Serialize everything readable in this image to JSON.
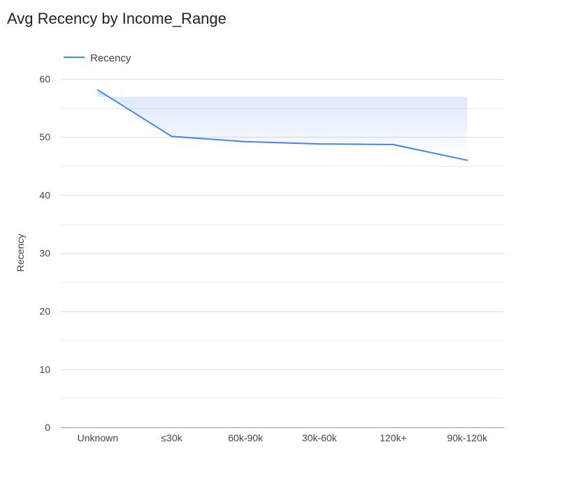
{
  "chart_data": {
    "type": "area",
    "title": "Avg Recency by Income_Range",
    "xlabel": "",
    "ylabel": "Recency",
    "categories": [
      "Unknown",
      "≤30k",
      "60k-90k",
      "30k-60k",
      "120k+",
      "90k-120k"
    ],
    "series": [
      {
        "name": "Recency",
        "values": [
          58.1,
          50.1,
          49.2,
          48.8,
          48.7,
          46.0
        ],
        "color": "#4285f4"
      }
    ],
    "ylim": [
      0,
      60
    ],
    "yticks": [
      0,
      10,
      20,
      30,
      40,
      50,
      60
    ],
    "grid": true,
    "minor_grid": true,
    "legend_position": "top-left"
  }
}
